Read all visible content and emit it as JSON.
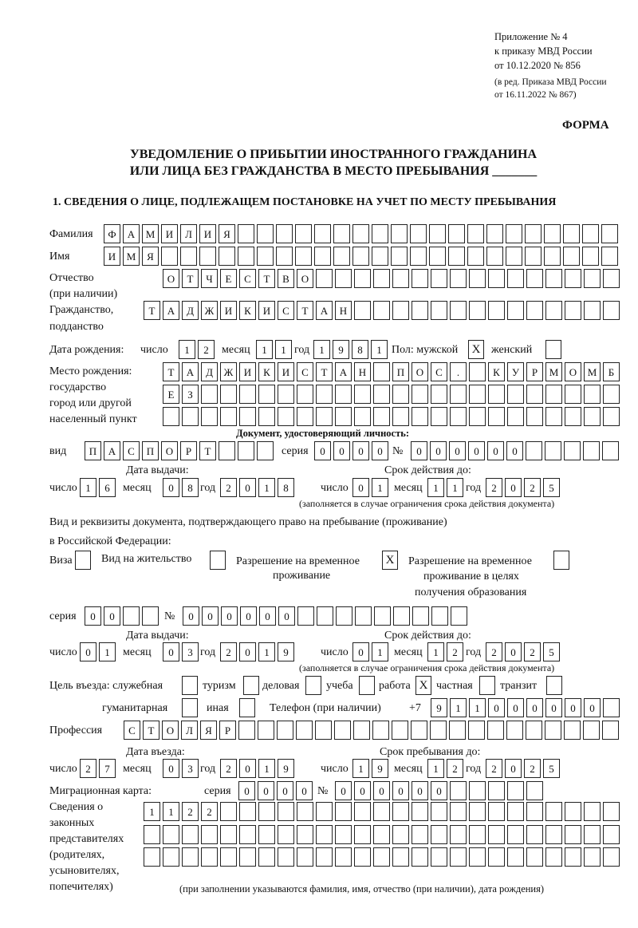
{
  "header": {
    "appendix": "Приложение № 4",
    "order": "к приказу МВД России",
    "order_date": "от 10.12.2020 № 856",
    "edition1": "(в ред. Приказа МВД России",
    "edition2": "от 16.11.2022 № 867)",
    "form_label": "ФОРМА",
    "title1": "УВЕДОМЛЕНИЕ О ПРИБЫТИИ ИНОСТРАННОГО ГРАЖДАНИНА",
    "title2": "ИЛИ ЛИЦА БЕЗ ГРАЖДАНСТВА В МЕСТО ПРЕБЫВАНИЯ _______",
    "section1": "1. СВЕДЕНИЯ О ЛИЦЕ, ПОДЛЕЖАЩЕМ ПОСТАНОВКЕ НА УЧЕТ ПО МЕСТУ ПРЕБЫВАНИЯ"
  },
  "labels": {
    "surname": "Фамилия",
    "name": "Имя",
    "patronymic": "Отчество",
    "patronymic2": "(при наличии)",
    "citizenship": "Гражданство,",
    "citizenship2": "подданство",
    "birth_date": "Дата рождения:",
    "day": "число",
    "month": "месяц",
    "year": "год",
    "sex": "Пол: мужской",
    "female": "женский",
    "birth_place": "Место рождения:",
    "bp2": "государство",
    "bp3": "город или другой",
    "bp4": "населенный пункт",
    "id_doc": "Документ, удостоверяющий личность:",
    "kind": "вид",
    "series": "серия",
    "number": "№",
    "issue_date": "Дата выдачи:",
    "valid_until": "Срок действия до:",
    "valid_note": "(заполняется в случае ограничения срока действия документа)",
    "right_doc": "Вид и реквизиты документа, подтверждающего право на пребывание (проживание)",
    "right_doc2": "в Российской Федерации:",
    "visa": "Виза",
    "residence": "Вид на жительство",
    "temp": "Разрешение на временное",
    "temp2": "проживание",
    "temp_edu": "Разрешение на временное",
    "temp_edu2": "проживание в целях",
    "temp_edu3": "получения образования",
    "purpose": "Цель въезда: служебная",
    "tourism": "туризм",
    "business": "деловая",
    "study": "учеба",
    "work": "работа",
    "private": "частная",
    "transit": "транзит",
    "humanitarian": "гуманитарная",
    "other": "иная",
    "phone": "Телефон (при наличии)",
    "phone_prefix": "+7",
    "profession": "Профессия",
    "entry_date": "Дата въезда:",
    "stay_until": "Срок пребывания до:",
    "migration_card": "Миграционная карта:",
    "reps1": "Сведения о",
    "reps2": "законных",
    "reps3": "представителях",
    "reps4": "(родителях,",
    "reps5": "усыновителях,",
    "reps6": "попечителях)",
    "reps_note": "(при заполнении указываются фамилия, имя, отчество (при наличии), дата рождения)"
  },
  "values": {
    "surname": "ФАМИЛИЯ",
    "name": "ИМЯ",
    "patronymic": "ОТЧЕСТВО",
    "citizenship": "ТАДЖИКИСТАН",
    "birth_day": "12",
    "birth_month": "11",
    "birth_year": "1981",
    "sex_male": true,
    "sex_female": false,
    "birth_place": [
      "ТАДЖИКИСТАН ПОС. КУРМОМБ",
      "ЕЗ",
      ""
    ],
    "id_kind": "ПАСПОРТ",
    "id_series": "0000",
    "id_number": "000000",
    "id_issue_day": "16",
    "id_issue_month": "08",
    "id_issue_year": "2018",
    "id_valid_day": "01",
    "id_valid_month": "11",
    "id_valid_year": "2025",
    "visa": false,
    "residence": false,
    "temp": true,
    "temp_edu": false,
    "right_series": "00",
    "right_number": "000000",
    "right_issue_day": "01",
    "right_issue_month": "03",
    "right_issue_year": "2019",
    "right_valid_day": "01",
    "right_valid_month": "12",
    "right_valid_year": "2025",
    "purpose": {
      "service": false,
      "tourism": false,
      "business": false,
      "study": false,
      "work": true,
      "private": false,
      "transit": false,
      "humanitarian": false,
      "other": false
    },
    "phone": "911000000",
    "profession": "СТОЛЯР",
    "entry_day": "27",
    "entry_month": "03",
    "entry_year": "2019",
    "stay_day": "19",
    "stay_month": "12",
    "stay_year": "2025",
    "mc_series": "0000",
    "mc_number": "000000",
    "reps": [
      "1122",
      "",
      ""
    ]
  }
}
